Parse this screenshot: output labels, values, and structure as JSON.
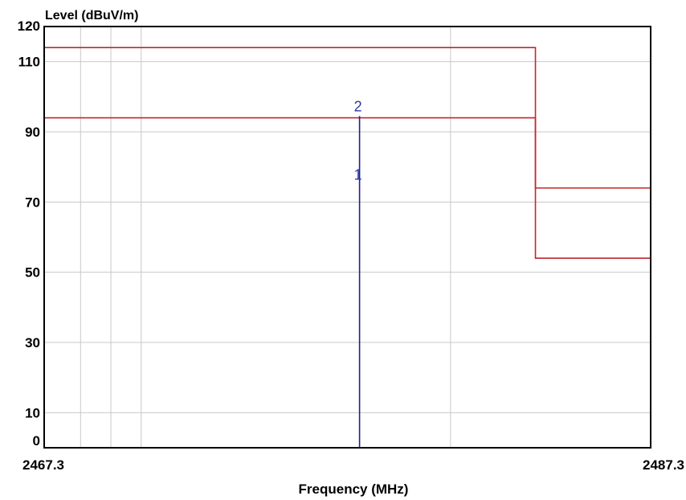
{
  "chart_data": {
    "type": "line",
    "ylabel": "Level (dBuV/m)",
    "xlabel": "Frequency (MHz)",
    "xlim": [
      2467.3,
      2487.3
    ],
    "ylim": [
      0,
      120
    ],
    "x_tick_labels": [
      "2467.3",
      "2487.3"
    ],
    "y_ticks": [
      0,
      10,
      30,
      50,
      70,
      90,
      110,
      120
    ],
    "grid": true,
    "x_grid": [
      2468.5,
      2469.5,
      2470.5,
      2480.7
    ],
    "y_grid": [
      10,
      30,
      50,
      70,
      90,
      110
    ],
    "limit_lines": [
      {
        "color": "#c0282d",
        "points": [
          [
            2467.3,
            114
          ],
          [
            2483.5,
            114
          ],
          [
            2483.5,
            54
          ],
          [
            2487.3,
            54
          ]
        ]
      },
      {
        "color": "#c0282d",
        "points": [
          [
            2467.3,
            94
          ],
          [
            2483.5,
            94
          ],
          [
            2483.5,
            74
          ],
          [
            2487.3,
            74
          ]
        ]
      }
    ],
    "trace": {
      "color": "#1f1f8f",
      "points": [
        [
          2477.7,
          0
        ],
        [
          2477.7,
          94.5
        ]
      ]
    },
    "markers": [
      {
        "label": "1",
        "x": 2477.7,
        "y": 75,
        "color": "#2b3a9f"
      },
      {
        "label": "2",
        "x": 2477.7,
        "y": 94.5,
        "color": "#2b3a9f"
      }
    ]
  }
}
